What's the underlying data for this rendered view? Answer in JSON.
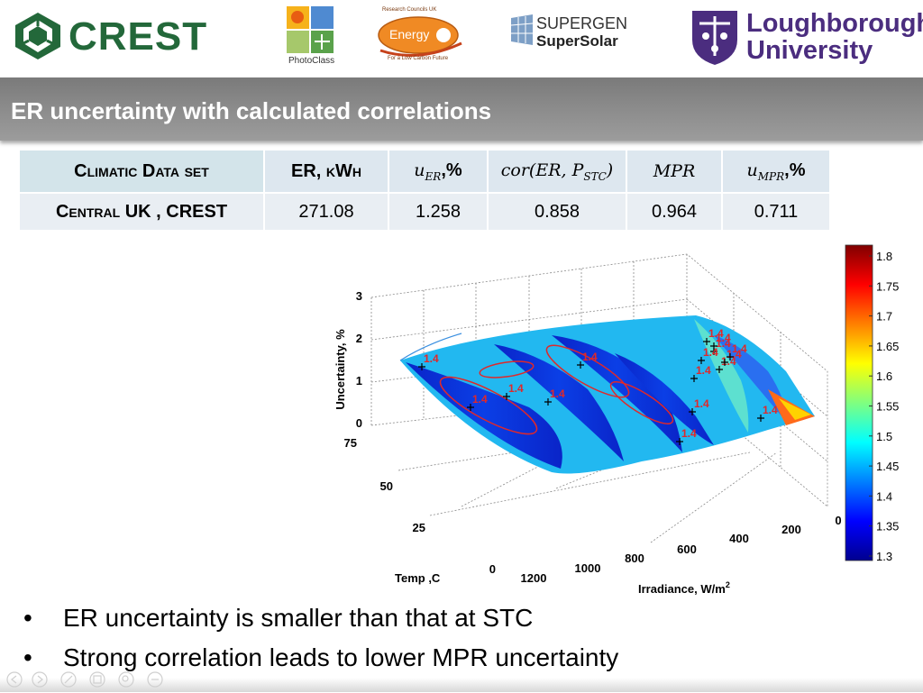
{
  "logos": {
    "crest": "CREST",
    "photoclass": "PhotoClass",
    "energy": "Energy",
    "energy_top": "Research Councils UK",
    "energy_bottom": "For a Low Carbon Future",
    "supergen_line1": "SUPERGEN",
    "supergen_line2": "SuperSolar",
    "lboro_line1": "Loughborough",
    "lboro_line2": "University"
  },
  "slide": {
    "title": "ER uncertainty with calculated correlations",
    "bullets": [
      "ER uncertainty is smaller than that at STC",
      "Strong correlation leads to lower MPR uncertainty"
    ]
  },
  "table": {
    "headers": {
      "climatic": "Climatic Data set",
      "er": "ER, kWh",
      "u_er_var": "u",
      "u_er_sub": "ER",
      "u_er_suffix": ",%",
      "cor_a": "cor(ER, P",
      "cor_sub": "STC",
      "cor_b": ")",
      "mpr": "MPR",
      "u_mpr_var": "u",
      "u_mpr_sub": "MPR",
      "u_mpr_suffix": ",%"
    },
    "rows": [
      {
        "dataset": "Central UK , CREST",
        "er": "271.08",
        "u_er": "1.258",
        "cor": "0.858",
        "mpr": "0.964",
        "u_mpr": "0.711"
      }
    ]
  },
  "chart_data": {
    "type": "heatmap",
    "zlabel": "Uncertainty, %",
    "xlabel": "Irradiance, W/m",
    "xlabel_sup": "2",
    "ylabel": "Temp ,C",
    "x_ticks": [
      "0",
      "200",
      "400",
      "600",
      "800",
      "1000",
      "1200"
    ],
    "y_ticks": [
      "0",
      "25",
      "50",
      "75"
    ],
    "z_ticks": [
      "0",
      "1",
      "2",
      "3"
    ],
    "zlim": [
      0,
      3
    ],
    "colorbar": {
      "range": [
        1.3,
        1.8
      ],
      "ticks": [
        "1.3",
        "1.35",
        "1.4",
        "1.45",
        "1.5",
        "1.55",
        "1.6",
        "1.65",
        "1.7",
        "1.75",
        "1.8"
      ]
    },
    "contour_value": "1.4",
    "contour_label_count": 16
  },
  "colors": {
    "title_bar": "#888888",
    "crest_green": "#23683a",
    "lboro_purple": "#4b2d7f",
    "contour_red": "#e0282a"
  }
}
